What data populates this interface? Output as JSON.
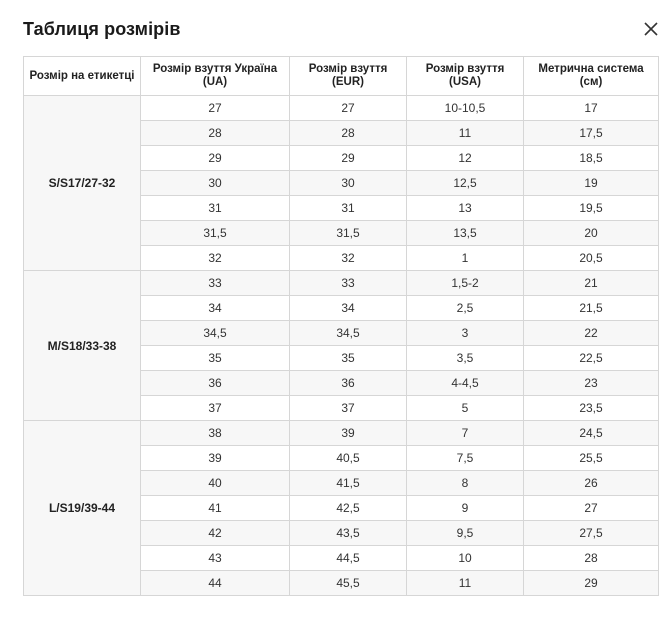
{
  "dialog": {
    "title": "Таблиця розмірів",
    "close_icon": "close-icon"
  },
  "table": {
    "headers": [
      "Розмір на етикетці",
      "Розмір взуття Україна (UA)",
      "Розмір взуття (EUR)",
      "Розмір взуття (USA)",
      "Метрична система (см)"
    ],
    "groups": [
      {
        "label": "S/S17/27-32",
        "rows": [
          [
            "27",
            "27",
            "10-10,5",
            "17"
          ],
          [
            "28",
            "28",
            "11",
            "17,5"
          ],
          [
            "29",
            "29",
            "12",
            "18,5"
          ],
          [
            "30",
            "30",
            "12,5",
            "19"
          ],
          [
            "31",
            "31",
            "13",
            "19,5"
          ],
          [
            "31,5",
            "31,5",
            "13,5",
            "20"
          ],
          [
            "32",
            "32",
            "1",
            "20,5"
          ]
        ]
      },
      {
        "label": "M/S18/33-38",
        "rows": [
          [
            "33",
            "33",
            "1,5-2",
            "21"
          ],
          [
            "34",
            "34",
            "2,5",
            "21,5"
          ],
          [
            "34,5",
            "34,5",
            "3",
            "22"
          ],
          [
            "35",
            "35",
            "3,5",
            "22,5"
          ],
          [
            "36",
            "36",
            "4-4,5",
            "23"
          ],
          [
            "37",
            "37",
            "5",
            "23,5"
          ]
        ]
      },
      {
        "label": "L/S19/39-44",
        "rows": [
          [
            "38",
            "39",
            "7",
            "24,5"
          ],
          [
            "39",
            "40,5",
            "7,5",
            "25,5"
          ],
          [
            "40",
            "41,5",
            "8",
            "26"
          ],
          [
            "41",
            "42,5",
            "9",
            "27"
          ],
          [
            "42",
            "43,5",
            "9,5",
            "27,5"
          ],
          [
            "43",
            "44,5",
            "10",
            "28"
          ],
          [
            "44",
            "45,5",
            "11",
            "29"
          ]
        ]
      }
    ]
  }
}
